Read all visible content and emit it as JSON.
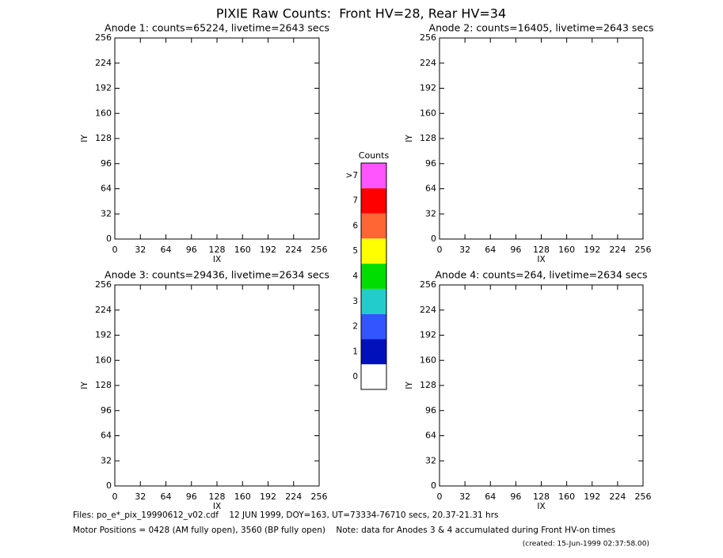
{
  "title": "PIXIE Raw Counts:  Front HV=28, Rear HV=34",
  "chart_data": [
    {
      "type": "image",
      "title": "Anode 1: counts=65224, livetime=2643 secs",
      "xlabel": "IX",
      "ylabel": "IY",
      "xlim": [
        0,
        256
      ],
      "ylim": [
        0,
        256
      ],
      "xticks": [
        0,
        32,
        64,
        96,
        128,
        160,
        192,
        224,
        256
      ],
      "yticks": [
        0,
        32,
        64,
        96,
        128,
        160,
        192,
        224,
        256
      ]
    },
    {
      "type": "image",
      "title": "Anode 2: counts=16405, livetime=2643 secs",
      "xlabel": "IX",
      "ylabel": "IY",
      "xlim": [
        0,
        256
      ],
      "ylim": [
        0,
        256
      ],
      "xticks": [
        0,
        32,
        64,
        96,
        128,
        160,
        192,
        224,
        256
      ],
      "yticks": [
        0,
        32,
        64,
        96,
        128,
        160,
        192,
        224,
        256
      ]
    },
    {
      "type": "image",
      "title": "Anode 3: counts=29436, livetime=2634 secs",
      "xlabel": "IX",
      "ylabel": "IY",
      "xlim": [
        0,
        256
      ],
      "ylim": [
        0,
        256
      ],
      "xticks": [
        0,
        32,
        64,
        96,
        128,
        160,
        192,
        224,
        256
      ],
      "yticks": [
        0,
        32,
        64,
        96,
        128,
        160,
        192,
        224,
        256
      ]
    },
    {
      "type": "image",
      "title": "Anode 4: counts=264, livetime=2634 secs",
      "xlabel": "IX",
      "ylabel": "IY",
      "xlim": [
        0,
        256
      ],
      "ylim": [
        0,
        256
      ],
      "xticks": [
        0,
        32,
        64,
        96,
        128,
        160,
        192,
        224,
        256
      ],
      "yticks": [
        0,
        32,
        64,
        96,
        128,
        160,
        192,
        224,
        256
      ]
    },
    {
      "type": "colorbar",
      "title": "Counts",
      "ticks": [
        0,
        1,
        2,
        3,
        4,
        5,
        6,
        7,
        {
          "value": 8,
          "label": ">7"
        }
      ],
      "colors": [
        "#ffffff",
        "#0011bb",
        "#3355ff",
        "#22cccc",
        "#00dd00",
        "#ffff00",
        "#ff6633",
        "#ff0000",
        "#ff55ff"
      ]
    }
  ],
  "footer": [
    "Files: po_e*_pix_19990612_v02.cdf    12 JUN 1999, DOY=163, UT=73334-76710 secs, 20.37-21.31 hrs",
    "Motor Positions = 0428 (AM fully open), 3560 (BP fully open)    Note: data for Anodes 3 & 4 accumulated during Front HV-on times",
    "(created: 15-Jun-1999 02:37:58.00)"
  ]
}
